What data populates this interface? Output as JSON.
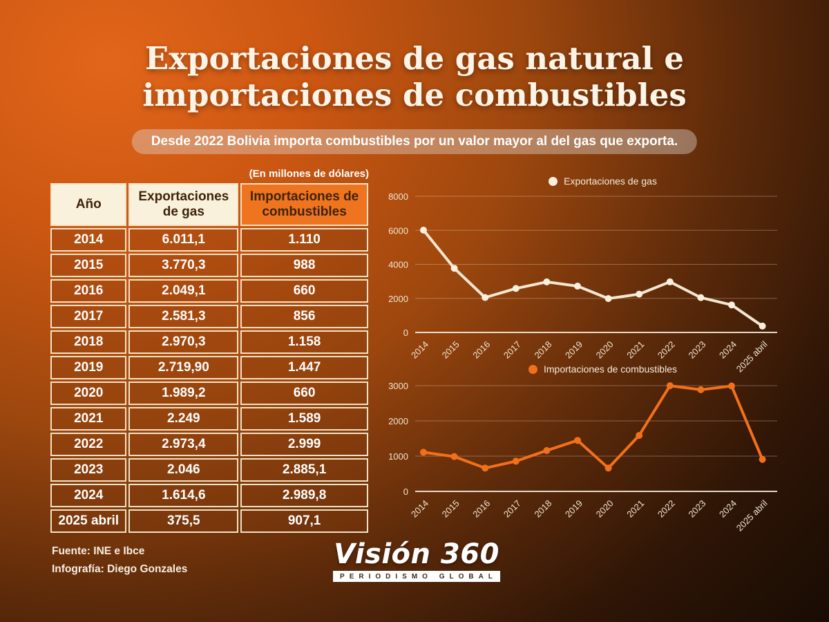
{
  "header": {
    "title": "Exportaciones de gas natural e importaciones de combustibles",
    "subtitle": "Desde 2022 Bolivia importa combustibles por un valor mayor al del gas que exporta."
  },
  "table": {
    "units_note": "(En millones de dólares)",
    "columns": [
      "Año",
      "Exportaciones de gas",
      "Importaciones de combustibles"
    ],
    "rows": [
      {
        "year": "2014",
        "exports": "6.011,1",
        "imports": "1.110"
      },
      {
        "year": "2015",
        "exports": "3.770,3",
        "imports": "988"
      },
      {
        "year": "2016",
        "exports": "2.049,1",
        "imports": "660"
      },
      {
        "year": "2017",
        "exports": "2.581,3",
        "imports": "856"
      },
      {
        "year": "2018",
        "exports": "2.970,3",
        "imports": "1.158"
      },
      {
        "year": "2019",
        "exports": "2.719,90",
        "imports": "1.447"
      },
      {
        "year": "2020",
        "exports": "1.989,2",
        "imports": "660"
      },
      {
        "year": "2021",
        "exports": "2.249",
        "imports": "1.589"
      },
      {
        "year": "2022",
        "exports": "2.973,4",
        "imports": "2.999"
      },
      {
        "year": "2023",
        "exports": "2.046",
        "imports": "2.885,1"
      },
      {
        "year": "2024",
        "exports": "1.614,6",
        "imports": "2.989,8"
      },
      {
        "year": "2025 abril",
        "exports": "375,5",
        "imports": "907,1"
      }
    ]
  },
  "chart_data": [
    {
      "type": "line",
      "title": "Exportaciones de gas",
      "legend_position": "top",
      "color": "#f3e7d1",
      "marker_color": "#f8efdf",
      "x": [
        "2014",
        "2015",
        "2016",
        "2017",
        "2018",
        "2019",
        "2020",
        "2021",
        "2022",
        "2023",
        "2024",
        "2025 abril"
      ],
      "values": [
        6011.1,
        3770.3,
        2049.1,
        2581.3,
        2970.3,
        2719.9,
        1989.2,
        2249,
        2973.4,
        2046,
        1614.6,
        375.5
      ],
      "ylim": [
        0,
        8000
      ],
      "yticks": [
        0,
        2000,
        4000,
        6000,
        8000
      ],
      "grid": true,
      "xlabel": "",
      "ylabel": ""
    },
    {
      "type": "line",
      "title": "Importaciones de combustibles",
      "legend_position": "top",
      "color": "#f3701a",
      "marker_color": "#f3701a",
      "x": [
        "2014",
        "2015",
        "2016",
        "2017",
        "2018",
        "2019",
        "2020",
        "2021",
        "2022",
        "2023",
        "2024",
        "2025 abril"
      ],
      "values": [
        1110,
        988,
        660,
        856,
        1158,
        1447,
        660,
        1589,
        2999,
        2885.1,
        2989.8,
        907.1
      ],
      "ylim": [
        0,
        3000
      ],
      "yticks": [
        0,
        1000,
        2000,
        3000
      ],
      "grid": true,
      "xlabel": "",
      "ylabel": ""
    }
  ],
  "footer": {
    "source": "Fuente: INE e Ibce",
    "credit": "Infografía: Diego Gonzales",
    "logo_name": "Visión 360",
    "logo_tagline": "PERIODISMO GLOBAL"
  },
  "colors": {
    "accent_orange": "#ee7420",
    "header_cream": "#faf1dd",
    "exports_line": "#f3e7d1",
    "imports_line": "#f3701a",
    "text_white": "#ffffff",
    "bg_bright": "#e2661a",
    "bg_dark": "#140a03"
  }
}
